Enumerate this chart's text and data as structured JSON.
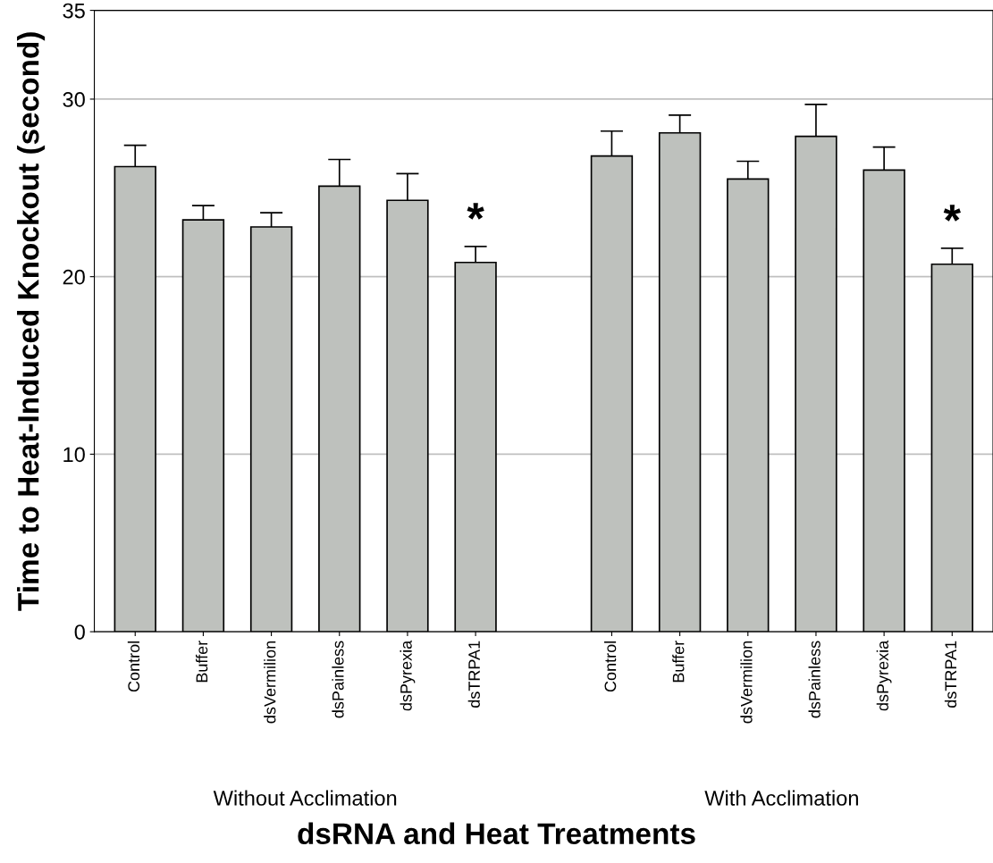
{
  "chart_data": {
    "type": "bar",
    "xlabel": "dsRNA and Heat Treatments",
    "ylabel": "Time to Heat-Induced Knockout (second)",
    "categories": [
      "Control",
      "Buffer",
      "dsVermilion",
      "dsPainless",
      "dsPyrexia",
      "dsTRPA1",
      null,
      "Control",
      "Buffer",
      "dsVermilion",
      "dsPainless",
      "dsPyrexia",
      "dsTRPA1"
    ],
    "values": [
      26.2,
      23.2,
      22.8,
      25.1,
      24.3,
      20.8,
      null,
      26.8,
      28.1,
      25.5,
      27.9,
      26.0,
      20.7
    ],
    "errors": [
      1.2,
      0.8,
      0.8,
      1.5,
      1.5,
      0.9,
      null,
      1.4,
      1.0,
      1.0,
      1.8,
      1.3,
      0.9
    ],
    "value_labels": [
      null,
      null,
      null,
      null,
      null,
      "*",
      null,
      null,
      null,
      null,
      null,
      null,
      "*"
    ],
    "color": "#bec1bd",
    "ylim": [
      0,
      35
    ],
    "yticks": [
      0,
      10,
      20,
      30,
      35
    ],
    "grid": "y",
    "annotations": [
      "Without Acclimation",
      "With Acclimation"
    ]
  }
}
